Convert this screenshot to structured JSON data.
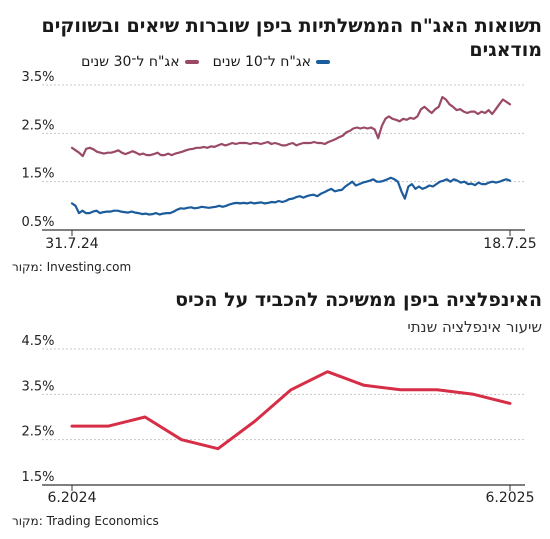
{
  "chart_data": [
    {
      "type": "line",
      "title": "תשואות האג\"ח הממשלתיות ביפן שוברות שיאים ובשווקים מודאגים",
      "source": "מקור: Investing.com",
      "yticks": [
        "3.5%",
        "2.5%",
        "1.5%",
        "0.5%"
      ],
      "ylim": [
        0.5,
        3.5
      ],
      "xticks": [
        "31.7.24",
        "18.7.25"
      ],
      "legend_position": "top",
      "series": [
        {
          "name": "אג\"ח ל־30 שנים",
          "color": "#9a4a68",
          "values": [
            2.2,
            2.15,
            2.1,
            2.03,
            2.18,
            2.2,
            2.17,
            2.12,
            2.1,
            2.08,
            2.1,
            2.1,
            2.12,
            2.15,
            2.1,
            2.07,
            2.1,
            2.13,
            2.1,
            2.06,
            2.08,
            2.05,
            2.05,
            2.07,
            2.1,
            2.05,
            2.05,
            2.08,
            2.05,
            2.08,
            2.1,
            2.12,
            2.15,
            2.17,
            2.18,
            2.2,
            2.2,
            2.22,
            2.2,
            2.23,
            2.22,
            2.25,
            2.28,
            2.25,
            2.27,
            2.3,
            2.28,
            2.3,
            2.3,
            2.3,
            2.28,
            2.3,
            2.3,
            2.28,
            2.3,
            2.32,
            2.28,
            2.3,
            2.28,
            2.25,
            2.25,
            2.28,
            2.3,
            2.25,
            2.28,
            2.3,
            2.3,
            2.3,
            2.32,
            2.3,
            2.3,
            2.28,
            2.32,
            2.35,
            2.38,
            2.42,
            2.45,
            2.52,
            2.55,
            2.6,
            2.62,
            2.6,
            2.62,
            2.6,
            2.62,
            2.58,
            2.4,
            2.65,
            2.8,
            2.85,
            2.8,
            2.78,
            2.75,
            2.8,
            2.78,
            2.82,
            2.8,
            2.85,
            3.0,
            3.05,
            2.98,
            2.92,
            3.0,
            3.05,
            3.25,
            3.2,
            3.1,
            3.05,
            2.98,
            3.0,
            2.95,
            2.92,
            2.95,
            2.95,
            2.9,
            2.95,
            2.92,
            2.98,
            2.9,
            3.0,
            3.1,
            3.2,
            3.15,
            3.1
          ]
        },
        {
          "name": "אג\"ח ל־10 שנים",
          "color": "#1b5c9c",
          "values": [
            1.05,
            1.0,
            0.85,
            0.9,
            0.85,
            0.85,
            0.88,
            0.9,
            0.85,
            0.87,
            0.88,
            0.88,
            0.9,
            0.9,
            0.88,
            0.87,
            0.86,
            0.88,
            0.86,
            0.85,
            0.83,
            0.84,
            0.82,
            0.83,
            0.85,
            0.82,
            0.84,
            0.85,
            0.85,
            0.88,
            0.92,
            0.95,
            0.94,
            0.96,
            0.97,
            0.95,
            0.96,
            0.98,
            0.97,
            0.96,
            0.97,
            0.98,
            1.0,
            0.98,
            1.0,
            1.03,
            1.05,
            1.06,
            1.05,
            1.06,
            1.05,
            1.07,
            1.05,
            1.06,
            1.07,
            1.05,
            1.06,
            1.08,
            1.07,
            1.1,
            1.08,
            1.1,
            1.14,
            1.15,
            1.18,
            1.2,
            1.17,
            1.2,
            1.22,
            1.23,
            1.2,
            1.25,
            1.28,
            1.32,
            1.35,
            1.3,
            1.32,
            1.33,
            1.4,
            1.45,
            1.5,
            1.42,
            1.45,
            1.48,
            1.5,
            1.52,
            1.55,
            1.5,
            1.5,
            1.52,
            1.55,
            1.58,
            1.55,
            1.5,
            1.3,
            1.15,
            1.4,
            1.45,
            1.35,
            1.4,
            1.35,
            1.38,
            1.42,
            1.4,
            1.45,
            1.5,
            1.52,
            1.55,
            1.5,
            1.55,
            1.52,
            1.48,
            1.5,
            1.45,
            1.46,
            1.43,
            1.48,
            1.45,
            1.45,
            1.48,
            1.5,
            1.48,
            1.5,
            1.53,
            1.55,
            1.52
          ]
        }
      ]
    },
    {
      "type": "line",
      "title": "האינפלציה ביפן ממשיכה להכביד על הכיס",
      "subtitle": "שיעור אינפלציה שנתי",
      "source": "מקור: Trading Economics",
      "yticks": [
        "4.5%",
        "3.5%",
        "2.5%",
        "1.5%"
      ],
      "ylim": [
        1.5,
        4.5
      ],
      "xticks": [
        "6.2024",
        "6.2025"
      ],
      "series": [
        {
          "name": "",
          "color": "#d62e47",
          "values": [
            2.8,
            2.8,
            3.0,
            2.5,
            2.3,
            2.9,
            3.6,
            4.0,
            3.7,
            3.6,
            3.6,
            3.5,
            3.3
          ]
        }
      ]
    }
  ]
}
